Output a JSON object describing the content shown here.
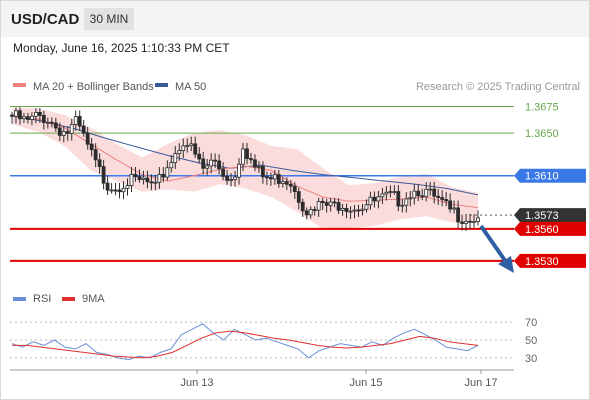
{
  "header": {
    "symbol": "USD/CAD",
    "timeframe": "30 MIN"
  },
  "timestamp": "Monday, June 16, 2025 1:10:33 PM CET",
  "legend": {
    "ma": "MA 20 + Bollinger Bands",
    "ma50": "MA 50",
    "credit": "Research © 2025 Trading Central"
  },
  "rsi_legend": {
    "rsi": "RSI",
    "ma": "9MA"
  },
  "colors": {
    "green": "#6aa84f",
    "blue": "#3b78e7",
    "red": "#e00000",
    "ma20": "#f08080",
    "ma50": "#3c5a99",
    "band": "#fbdcdc",
    "rsi": "#6a8fd8",
    "rsi_ma": "#e03030",
    "candle": "#2c2c2c",
    "arrow": "#2e5fa3",
    "dark_tag": "#333333"
  },
  "chart_data": [
    {
      "type": "line",
      "title": "USD/CAD 30 MIN",
      "y_range": [
        1.3512,
        1.3683
      ],
      "x_labels": [
        "Jun 13",
        "Jun 15",
        "Jun 17"
      ],
      "levels": [
        {
          "value": 1.3675,
          "label": "1.3675",
          "style": "green"
        },
        {
          "value": 1.365,
          "label": "1.3650",
          "style": "green"
        },
        {
          "value": 1.361,
          "label": "1.3610",
          "style": "blue"
        },
        {
          "value": 1.3573,
          "label": "1.3573",
          "style": "current"
        },
        {
          "value": 1.356,
          "label": "1.3560",
          "style": "red"
        },
        {
          "value": 1.353,
          "label": "1.3530",
          "style": "red"
        }
      ],
      "price_path": [
        1.3667,
        1.3664,
        1.366,
        1.3666,
        1.3664,
        1.3655,
        1.365,
        1.366,
        1.364,
        1.362,
        1.3603,
        1.36,
        1.3605,
        1.3604,
        1.3605,
        1.3596,
        1.3615,
        1.363,
        1.3645,
        1.363,
        1.3615,
        1.3625,
        1.3612,
        1.3606,
        1.364,
        1.362,
        1.3609,
        1.3606,
        1.3609,
        1.3604,
        1.3585,
        1.3573,
        1.3584,
        1.358,
        1.3585,
        1.3581,
        1.3582,
        1.3584,
        1.3587,
        1.359,
        1.3587,
        1.3594,
        1.3598,
        1.3592,
        1.3585,
        1.3578,
        1.3573,
        1.357,
        1.3571
      ],
      "ma50_path": [
        1.3666,
        1.3661,
        1.3654,
        1.3645,
        1.3637,
        1.3629,
        1.3622,
        1.3617,
        1.362,
        1.3615,
        1.3611,
        1.3608,
        1.3605,
        1.3602,
        1.3598,
        1.3592
      ],
      "ma20_path": [
        1.3666,
        1.3663,
        1.3655,
        1.364,
        1.3625,
        1.3611,
        1.3605,
        1.361,
        1.3616,
        1.3619,
        1.3615,
        1.36,
        1.359,
        1.3586,
        1.3587,
        1.3588,
        1.359,
        1.3583,
        1.358
      ],
      "band_upper": [
        1.3674,
        1.3673,
        1.3667,
        1.3655,
        1.364,
        1.3627,
        1.364,
        1.365,
        1.3653,
        1.3648,
        1.3638,
        1.3635,
        1.3617,
        1.3601,
        1.3603,
        1.3609,
        1.3612,
        1.3599,
        1.3594
      ],
      "band_lower": [
        1.3658,
        1.3651,
        1.3638,
        1.3615,
        1.3605,
        1.3595,
        1.3597,
        1.3595,
        1.3602,
        1.3598,
        1.359,
        1.3576,
        1.356,
        1.356,
        1.3563,
        1.3569,
        1.3572,
        1.3566,
        1.3566
      ]
    },
    {
      "type": "line",
      "title": "RSI",
      "y_range": [
        22,
        78
      ],
      "y_ticks": [
        70,
        50,
        30
      ],
      "rsi_path": [
        46,
        42,
        48,
        44,
        50,
        42,
        40,
        46,
        36,
        34,
        30,
        28,
        32,
        30,
        36,
        40,
        56,
        62,
        68,
        58,
        50,
        62,
        56,
        50,
        52,
        48,
        44,
        40,
        30,
        38,
        42,
        46,
        44,
        42,
        48,
        44,
        52,
        58,
        62,
        56,
        50,
        42,
        40,
        38,
        44
      ],
      "rsi_ma_path": [
        44,
        44,
        42,
        40,
        38,
        36,
        34,
        32,
        31,
        30,
        32,
        36,
        44,
        52,
        58,
        60,
        58,
        55,
        52,
        50,
        47,
        44,
        42,
        41,
        42,
        44,
        46,
        50,
        54,
        52,
        48,
        46,
        44
      ]
    }
  ]
}
